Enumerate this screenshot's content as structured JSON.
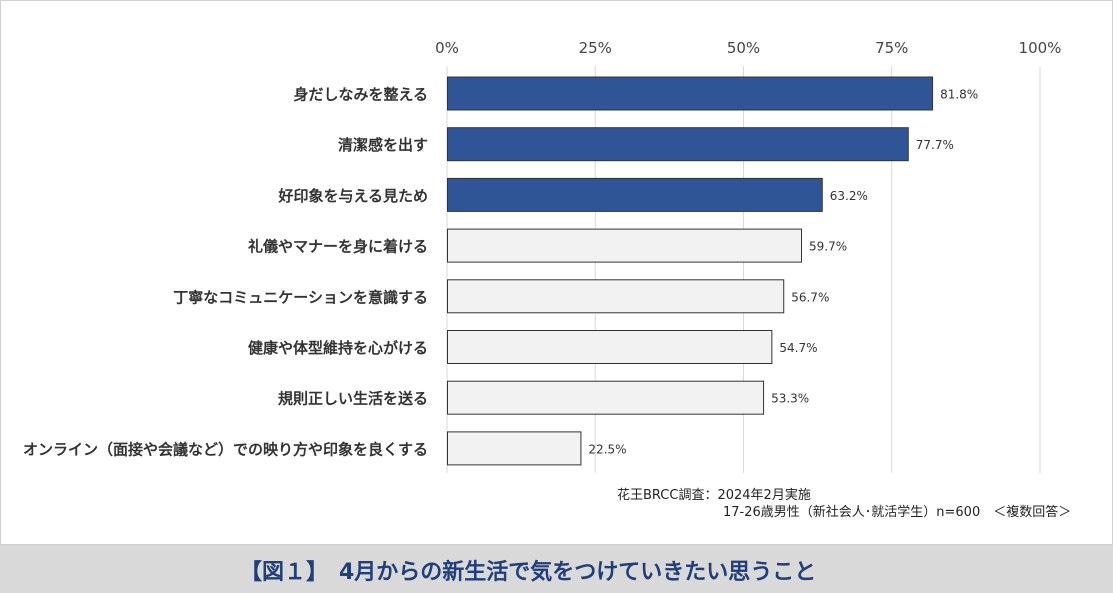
{
  "chart_data": {
    "type": "bar",
    "orientation": "horizontal",
    "categories": [
      "身だしなみを整える",
      "清潔感を出す",
      "好印象を与える見ため",
      "礼儀やマナーを身に着ける",
      "丁寧なコミュニケーションを意識する",
      "健康や体型維持を心がける",
      "規則正しい生活を送る",
      "オンライン（面接や会議など）での映り方や印象を良くする"
    ],
    "values": [
      81.8,
      77.7,
      63.2,
      59.7,
      56.7,
      54.7,
      53.3,
      22.5
    ],
    "value_labels": [
      "81.8%",
      "77.7%",
      "63.2%",
      "59.7%",
      "56.7%",
      "54.7%",
      "53.3%",
      "22.5%"
    ],
    "highlighted_count": 3,
    "xlim": [
      0,
      100
    ],
    "x_ticks": [
      0,
      25,
      50,
      75,
      100
    ],
    "x_tick_labels": [
      "0%",
      "25%",
      "50%",
      "75%",
      "100%"
    ],
    "grid": true,
    "colors": {
      "highlight": "#2f5597",
      "default": "#f2f2f2",
      "bar_border": "#333333",
      "grid": "#d9d9d9"
    }
  },
  "source": {
    "line1": "花王BRCC調査：2024年2月実施",
    "line2": "17-26歳男性（新社会人･就活学生）n=600　＜複数回答＞"
  },
  "caption": "【図１】　4月からの新生活で気をつけていきたい思うこと"
}
